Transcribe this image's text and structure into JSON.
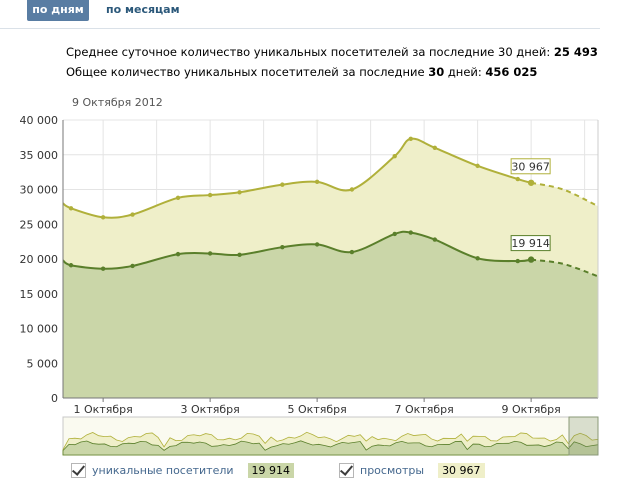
{
  "tabs": {
    "active": "по дням",
    "other": "по месяцам"
  },
  "stats": {
    "line1_label": "Среднее суточное количество уникальных посетителей за последние 30 дней:",
    "line1_value": "25 493",
    "line2_label": "Общее количество уникальных посетителей за последние",
    "line2_days": "30",
    "line2_mid": "дней:",
    "line2_value": "456 025"
  },
  "legend": {
    "uniques_label": "уникальные посетители",
    "uniques_value": "19 914",
    "views_label": "просмотры",
    "views_value": "30 967"
  },
  "colors": {
    "uniques_line": "#5a7f2b",
    "uniques_fill": "#cad6a8",
    "uniques_badge_bg": "#cad6a8",
    "views_line": "#b0b03a",
    "views_fill": "#efefc9",
    "views_badge_bg": "#efefc9",
    "grid": "#e4e4e4"
  },
  "chart_data": {
    "type": "area",
    "hover_label": "9 Октября 2012",
    "y_ticks": [
      "0",
      "5 000",
      "10 000",
      "15 000",
      "20 000",
      "25 000",
      "30 000",
      "35 000",
      "40 000"
    ],
    "x_ticks": [
      "1 Октября",
      "3 Октября",
      "5 Октября",
      "7 Октября",
      "9 Октября"
    ],
    "ylim": [
      0,
      40000
    ],
    "xlim": [
      0.25,
      10.25
    ],
    "x_tick_positions": [
      1,
      3,
      5,
      7,
      9
    ],
    "series": [
      {
        "name": "просмотры",
        "x": [
          0.25,
          0.4,
          1.0,
          1.55,
          2.4,
          3.0,
          3.55,
          4.35,
          5.0,
          5.65,
          6.45,
          6.75,
          7.2,
          8.0,
          8.75,
          9.0
        ],
        "values": [
          28000,
          27300,
          26000,
          26400,
          28800,
          29200,
          29600,
          30700,
          31100,
          30000,
          34800,
          37300,
          36000,
          33400,
          31500,
          30967
        ],
        "projection_x": [
          9.0,
          9.6,
          10.25
        ],
        "projection_values": [
          30967,
          30000,
          27600
        ],
        "annotation": "30 967"
      },
      {
        "name": "уникальные посетители",
        "x": [
          0.25,
          0.4,
          1.0,
          1.55,
          2.4,
          3.0,
          3.55,
          4.35,
          5.0,
          5.65,
          6.45,
          6.75,
          7.2,
          8.0,
          8.75,
          9.0
        ],
        "values": [
          19800,
          19100,
          18600,
          19000,
          20700,
          20800,
          20600,
          21700,
          22100,
          21000,
          23600,
          23800,
          22800,
          20100,
          19700,
          19914
        ],
        "projection_x": [
          9.0,
          9.6,
          10.25
        ],
        "projection_values": [
          19914,
          19300,
          17500
        ],
        "annotation": "19 914"
      }
    ]
  }
}
